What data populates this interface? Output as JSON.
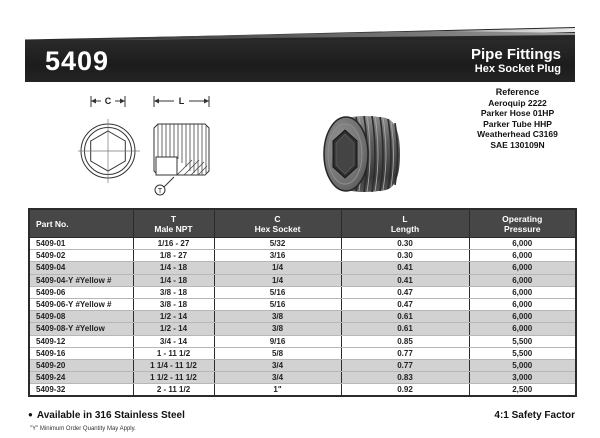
{
  "banner": {
    "code": "5409",
    "title": "Pipe Fittings",
    "subtitle": "Hex Socket Plug"
  },
  "reference": {
    "heading": "Reference",
    "items": [
      "Aeroquip 2222",
      "Parker Hose 01HP",
      "Parker Tube HHP",
      "Weatherhead C3169",
      "SAE 130109N"
    ]
  },
  "diagram": {
    "dim_hex_socket": "C",
    "dim_length": "L",
    "thread_callout": "T"
  },
  "table": {
    "columns": [
      {
        "key": "part",
        "line1": "Part No.",
        "line2": ""
      },
      {
        "key": "npt",
        "line1": "T",
        "line2": "Male NPT"
      },
      {
        "key": "hex",
        "line1": "C",
        "line2": "Hex Socket"
      },
      {
        "key": "length",
        "line1": "L",
        "line2": "Length"
      },
      {
        "key": "pressure",
        "line1": "Operating",
        "line2": "Pressure"
      }
    ],
    "rows": [
      {
        "part": "5409-01",
        "npt": "1/16 - 27",
        "hex": "5/32",
        "length": "0.30",
        "pressure": "6,000",
        "shaded": false
      },
      {
        "part": "5409-02",
        "npt": "1/8 - 27",
        "hex": "3/16",
        "length": "0.30",
        "pressure": "6,000",
        "shaded": false
      },
      {
        "part": "5409-04",
        "npt": "1/4 - 18",
        "hex": "1/4",
        "length": "0.41",
        "pressure": "6,000",
        "shaded": true
      },
      {
        "part": "5409-04-Y  #Yellow #",
        "npt": "1/4 - 18",
        "hex": "1/4",
        "length": "0.41",
        "pressure": "6,000",
        "shaded": true
      },
      {
        "part": "5409-06",
        "npt": "3/8 - 18",
        "hex": "5/16",
        "length": "0.47",
        "pressure": "6,000",
        "shaded": false
      },
      {
        "part": "5409-06-Y  #Yellow #",
        "npt": "3/8 - 18",
        "hex": "5/16",
        "length": "0.47",
        "pressure": "6,000",
        "shaded": false
      },
      {
        "part": "5409-08",
        "npt": "1/2 - 14",
        "hex": "3/8",
        "length": "0.61",
        "pressure": "6,000",
        "shaded": true
      },
      {
        "part": "5409-08-Y  #Yellow",
        "npt": "1/2 - 14",
        "hex": "3/8",
        "length": "0.61",
        "pressure": "6,000",
        "shaded": true
      },
      {
        "part": "5409-12",
        "npt": "3/4 - 14",
        "hex": "9/16",
        "length": "0.85",
        "pressure": "5,500",
        "shaded": false
      },
      {
        "part": "5409-16",
        "npt": "1 - 11 1/2",
        "hex": "5/8",
        "length": "0.77",
        "pressure": "5,500",
        "shaded": false
      },
      {
        "part": "5409-20",
        "npt": "1 1/4 - 11 1/2",
        "hex": "3/4",
        "length": "0.77",
        "pressure": "5,000",
        "shaded": true
      },
      {
        "part": "5409-24",
        "npt": "1 1/2 - 11 1/2",
        "hex": "3/4",
        "length": "0.83",
        "pressure": "3,000",
        "shaded": true
      },
      {
        "part": "5409-32",
        "npt": "2 - 11 1/2",
        "hex": "1\"",
        "length": "0.92",
        "pressure": "2,500",
        "shaded": false
      }
    ]
  },
  "footer": {
    "bullet": "●",
    "available_prefix": "Available in",
    "available_bold": "316 Stainless Steel",
    "safety_factor": "4:1 Safety Factor",
    "footnote": "\"Y\" Minimum Order Quantity May Apply."
  },
  "colors": {
    "banner_bg": "#1f1f1f",
    "table_header_bg": "#474747",
    "shaded_row_bg": "#d2d2d2"
  }
}
